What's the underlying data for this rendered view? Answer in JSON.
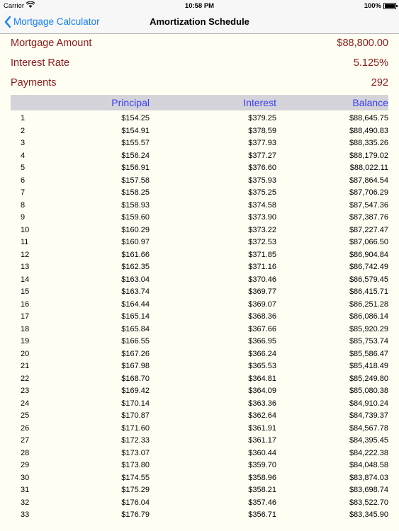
{
  "status": {
    "carrier": "Carrier",
    "time": "10:58 PM",
    "battery": "100%"
  },
  "nav": {
    "back_label": "Mortgage Calculator",
    "title": "Amortization Schedule"
  },
  "summary": [
    {
      "label": "Mortgage Amount",
      "value": "$88,800.00"
    },
    {
      "label": "Interest Rate",
      "value": "5.125%"
    },
    {
      "label": "Payments",
      "value": "292"
    }
  ],
  "table": {
    "headers": {
      "principal": "Principal",
      "interest": "Interest",
      "balance": "Balance"
    },
    "rows": [
      [
        "1",
        "$154.25",
        "$379.25",
        "$88,645.75"
      ],
      [
        "2",
        "$154.91",
        "$378.59",
        "$88,490.83"
      ],
      [
        "3",
        "$155.57",
        "$377.93",
        "$88,335.26"
      ],
      [
        "4",
        "$156.24",
        "$377.27",
        "$88,179.02"
      ],
      [
        "5",
        "$156.91",
        "$376.60",
        "$88,022.11"
      ],
      [
        "6",
        "$157.58",
        "$375.93",
        "$87,864.54"
      ],
      [
        "7",
        "$158.25",
        "$375.25",
        "$87,706.29"
      ],
      [
        "8",
        "$158.93",
        "$374.58",
        "$87,547.36"
      ],
      [
        "9",
        "$159.60",
        "$373.90",
        "$87,387.76"
      ],
      [
        "10",
        "$160.29",
        "$373.22",
        "$87,227.47"
      ],
      [
        "11",
        "$160.97",
        "$372.53",
        "$87,066.50"
      ],
      [
        "12",
        "$161.66",
        "$371.85",
        "$86,904.84"
      ],
      [
        "13",
        "$162.35",
        "$371.16",
        "$86,742.49"
      ],
      [
        "14",
        "$163.04",
        "$370.46",
        "$86,579.45"
      ],
      [
        "15",
        "$163.74",
        "$369.77",
        "$86,415.71"
      ],
      [
        "16",
        "$164.44",
        "$369.07",
        "$86,251.28"
      ],
      [
        "17",
        "$165.14",
        "$368.36",
        "$86,086.14"
      ],
      [
        "18",
        "$165.84",
        "$367.66",
        "$85,920.29"
      ],
      [
        "19",
        "$166.55",
        "$366.95",
        "$85,753.74"
      ],
      [
        "20",
        "$167.26",
        "$366.24",
        "$85,586.47"
      ],
      [
        "21",
        "$167.98",
        "$365.53",
        "$85,418.49"
      ],
      [
        "22",
        "$168.70",
        "$364.81",
        "$85,249.80"
      ],
      [
        "23",
        "$169.42",
        "$364.09",
        "$85,080.38"
      ],
      [
        "24",
        "$170.14",
        "$363.36",
        "$84,910.24"
      ],
      [
        "25",
        "$170.87",
        "$362.64",
        "$84,739.37"
      ],
      [
        "26",
        "$171.60",
        "$361.91",
        "$84,567.78"
      ],
      [
        "27",
        "$172.33",
        "$361.17",
        "$84,395.45"
      ],
      [
        "28",
        "$173.07",
        "$360.44",
        "$84,222.38"
      ],
      [
        "29",
        "$173.80",
        "$359.70",
        "$84,048.58"
      ],
      [
        "30",
        "$174.55",
        "$358.96",
        "$83,874.03"
      ],
      [
        "31",
        "$175.29",
        "$358.21",
        "$83,698.74"
      ],
      [
        "32",
        "$176.04",
        "$357.46",
        "$83,522.70"
      ],
      [
        "33",
        "$176.79",
        "$356.71",
        "$83,345.90"
      ]
    ]
  }
}
